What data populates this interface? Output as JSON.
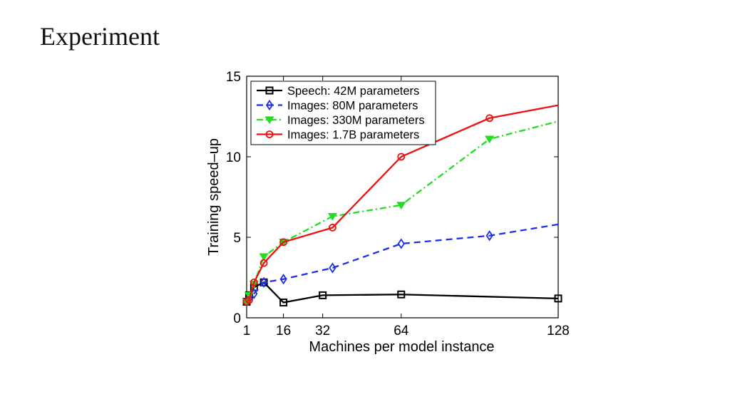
{
  "slide": {
    "title": "Experiment"
  },
  "chart_data": {
    "type": "line",
    "xlabel": "Machines per model instance",
    "ylabel": "Training speed–up",
    "xlim": [
      1,
      128
    ],
    "ylim": [
      0,
      15
    ],
    "xticks": [
      1,
      16,
      32,
      64,
      128
    ],
    "yticks": [
      0,
      5,
      10,
      15
    ],
    "legend_position": "top-left",
    "grid": false,
    "series": [
      {
        "name": "Speech: 42M parameters",
        "color": "#000000",
        "dash": "solid",
        "marker": "square",
        "x": [
          1,
          2,
          4,
          8,
          16,
          32,
          64,
          128
        ],
        "y": [
          1.0,
          1.4,
          1.9,
          2.2,
          0.95,
          1.4,
          1.45,
          1.2
        ]
      },
      {
        "name": "Images: 80M parameters",
        "color": "#1f2ee8",
        "dash": "dashed",
        "marker": "diamond",
        "x": [
          1,
          2,
          4,
          8,
          16,
          36,
          64,
          100,
          128
        ],
        "y": [
          1.0,
          1.2,
          1.5,
          2.2,
          2.4,
          3.1,
          4.6,
          5.1,
          5.8
        ]
      },
      {
        "name": "Images: 330M parameters",
        "color": "#22dd22",
        "dash": "dashdot",
        "marker": "triangle-down",
        "x": [
          1,
          2,
          4,
          8,
          16,
          36,
          64,
          100,
          128
        ],
        "y": [
          1.0,
          1.4,
          2.1,
          3.8,
          4.7,
          6.3,
          7.0,
          11.1,
          12.2
        ]
      },
      {
        "name": "Images: 1.7B parameters",
        "color": "#ee1111",
        "dash": "solid",
        "marker": "circle",
        "x": [
          1,
          2,
          4,
          8,
          16,
          36,
          64,
          100,
          128
        ],
        "y": [
          1.0,
          1.1,
          2.2,
          3.4,
          4.7,
          5.6,
          10.0,
          12.4,
          13.2
        ]
      }
    ]
  }
}
